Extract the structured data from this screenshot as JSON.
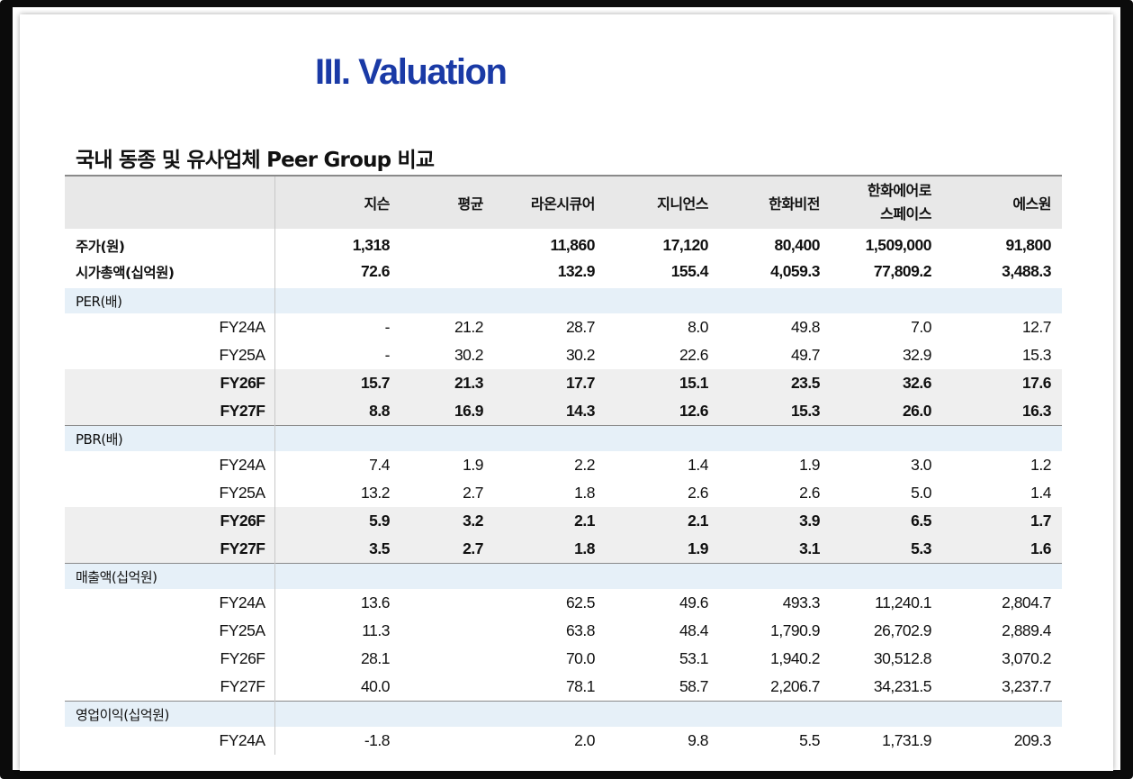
{
  "title": "III. Valuation",
  "subtitle": "국내 동종 및 유사업체 Peer Group 비교",
  "header": [
    "",
    "지슨",
    "평균",
    "라온시큐어",
    "지니언스",
    "한화비전",
    "한화에어로 스페이스",
    "에스원"
  ],
  "price_rows": [
    {
      "label": "주가(원)",
      "values": [
        "1,318",
        "",
        "11,860",
        "17,120",
        "80,400",
        "1,509,000",
        "91,800"
      ]
    },
    {
      "label": "시가총액(십억원)",
      "values": [
        "72.6",
        "",
        "132.9",
        "155.4",
        "4,059.3",
        "77,809.2",
        "3,488.3"
      ]
    }
  ],
  "sections": [
    {
      "name": "PER(배)",
      "rows": [
        {
          "label": "FY24A",
          "style": "normal",
          "values": [
            "-",
            "21.2",
            "28.7",
            "8.0",
            "49.8",
            "7.0",
            "12.7"
          ]
        },
        {
          "label": "FY25A",
          "style": "normal",
          "values": [
            "-",
            "30.2",
            "30.2",
            "22.6",
            "49.7",
            "32.9",
            "15.3"
          ]
        },
        {
          "label": "FY26F",
          "style": "bold",
          "values": [
            "15.7",
            "21.3",
            "17.7",
            "15.1",
            "23.5",
            "32.6",
            "17.6"
          ]
        },
        {
          "label": "FY27F",
          "style": "bold",
          "values": [
            "8.8",
            "16.9",
            "14.3",
            "12.6",
            "15.3",
            "26.0",
            "16.3"
          ]
        }
      ]
    },
    {
      "name": "PBR(배)",
      "rows": [
        {
          "label": "FY24A",
          "style": "normal",
          "values": [
            "7.4",
            "1.9",
            "2.2",
            "1.4",
            "1.9",
            "3.0",
            "1.2"
          ]
        },
        {
          "label": "FY25A",
          "style": "normal",
          "values": [
            "13.2",
            "2.7",
            "1.8",
            "2.6",
            "2.6",
            "5.0",
            "1.4"
          ]
        },
        {
          "label": "FY26F",
          "style": "bold",
          "values": [
            "5.9",
            "3.2",
            "2.1",
            "2.1",
            "3.9",
            "6.5",
            "1.7"
          ]
        },
        {
          "label": "FY27F",
          "style": "bold",
          "values": [
            "3.5",
            "2.7",
            "1.8",
            "1.9",
            "3.1",
            "5.3",
            "1.6"
          ]
        }
      ]
    },
    {
      "name": "매출액(십억원)",
      "rows": [
        {
          "label": "FY24A",
          "style": "normal",
          "values": [
            "13.6",
            "",
            "62.5",
            "49.6",
            "493.3",
            "11,240.1",
            "2,804.7"
          ]
        },
        {
          "label": "FY25A",
          "style": "normal",
          "values": [
            "11.3",
            "",
            "63.8",
            "48.4",
            "1,790.9",
            "26,702.9",
            "2,889.4"
          ]
        },
        {
          "label": "FY26F",
          "style": "normal",
          "values": [
            "28.1",
            "",
            "70.0",
            "53.1",
            "1,940.2",
            "30,512.8",
            "3,070.2"
          ]
        },
        {
          "label": "FY27F",
          "style": "normal",
          "values": [
            "40.0",
            "",
            "78.1",
            "58.7",
            "2,206.7",
            "34,231.5",
            "3,237.7"
          ]
        }
      ]
    },
    {
      "name": "영업이익(십억원)",
      "rows": [
        {
          "label": "FY24A",
          "style": "normal",
          "values": [
            "-1.8",
            "",
            "2.0",
            "9.8",
            "5.5",
            "1,731.9",
            "209.3"
          ]
        }
      ]
    }
  ]
}
